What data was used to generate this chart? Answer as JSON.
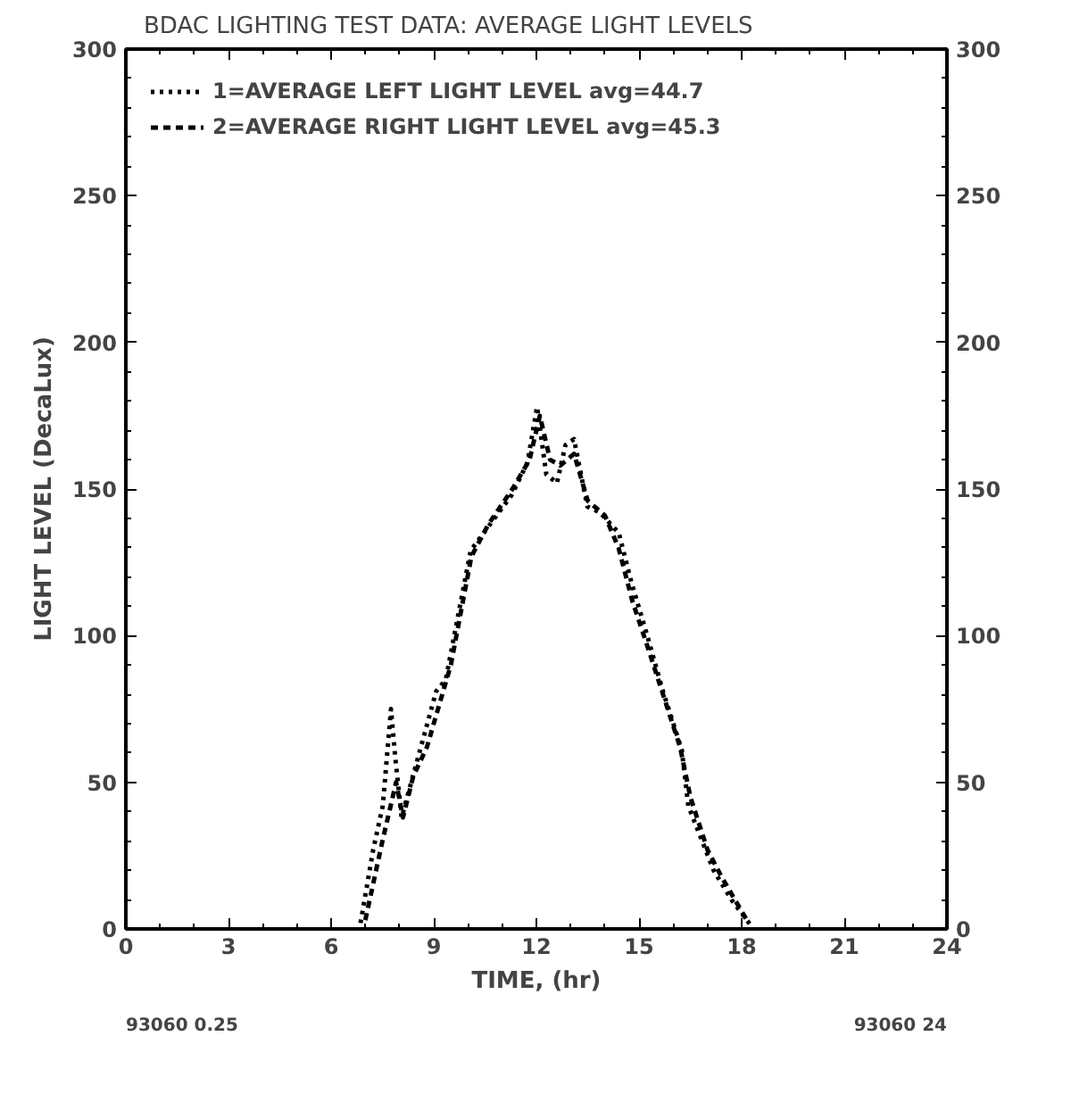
{
  "chart_data": {
    "type": "line",
    "title": "BDAC LIGHTING TEST DATA: AVERAGE LIGHT LEVELS",
    "xlabel": "TIME, (hr)",
    "ylabel": "LIGHT LEVEL (DecaLux)",
    "xlim": [
      0,
      24
    ],
    "xticks": [
      0,
      3,
      6,
      9,
      12,
      15,
      18,
      21,
      24
    ],
    "ylim": [
      0,
      300
    ],
    "yticks": [
      0,
      50,
      100,
      150,
      200,
      250,
      300
    ],
    "y2lim": [
      0,
      300
    ],
    "y2ticks": [
      0,
      50,
      100,
      150,
      200,
      250,
      300
    ],
    "grid": false,
    "legend": "top left",
    "marker": "none",
    "series": [
      {
        "name": "1=AVERAGE LEFT LIGHT LEVEL avg=44.7",
        "color": "#000000",
        "line_style": "dotted",
        "x": [
          6.86,
          7.23,
          7.51,
          7.75,
          7.87,
          8.06,
          9.07,
          9.35,
          10.08,
          11.28,
          11.74,
          12.02,
          12.29,
          12.6,
          12.85,
          13.1,
          13.49,
          13.86,
          14.41,
          14.78,
          15.24,
          15.7,
          16.25,
          16.44,
          17.18,
          17.7,
          18.28
        ],
        "values": [
          2,
          27,
          42,
          75,
          59,
          38,
          81,
          85,
          129,
          148,
          159,
          178,
          155,
          152,
          165,
          167,
          144,
          142,
          135,
          118,
          100,
          81,
          61,
          42,
          20,
          10,
          1
        ]
      },
      {
        "name": "2=AVERAGE RIGHT LIGHT LEVEL avg=45.3",
        "color": "#000000",
        "line_style": "dashed",
        "x": [
          7.0,
          7.5,
          7.9,
          8.1,
          8.4,
          8.8,
          9.2,
          9.5,
          10.1,
          10.6,
          11.3,
          11.8,
          12.1,
          12.4,
          12.7,
          13.1,
          13.5,
          14.0,
          14.4,
          14.8,
          15.2,
          15.7,
          16.2,
          16.5,
          17.0,
          17.4,
          18.2
        ],
        "values": [
          3,
          30,
          50,
          38,
          52,
          62,
          78,
          90,
          127,
          138,
          150,
          160,
          175,
          160,
          158,
          162,
          146,
          141,
          130,
          112,
          98,
          80,
          62,
          45,
          27,
          18,
          2
        ]
      }
    ],
    "annotations": [
      "93060 0.25",
      "93060 24"
    ]
  }
}
